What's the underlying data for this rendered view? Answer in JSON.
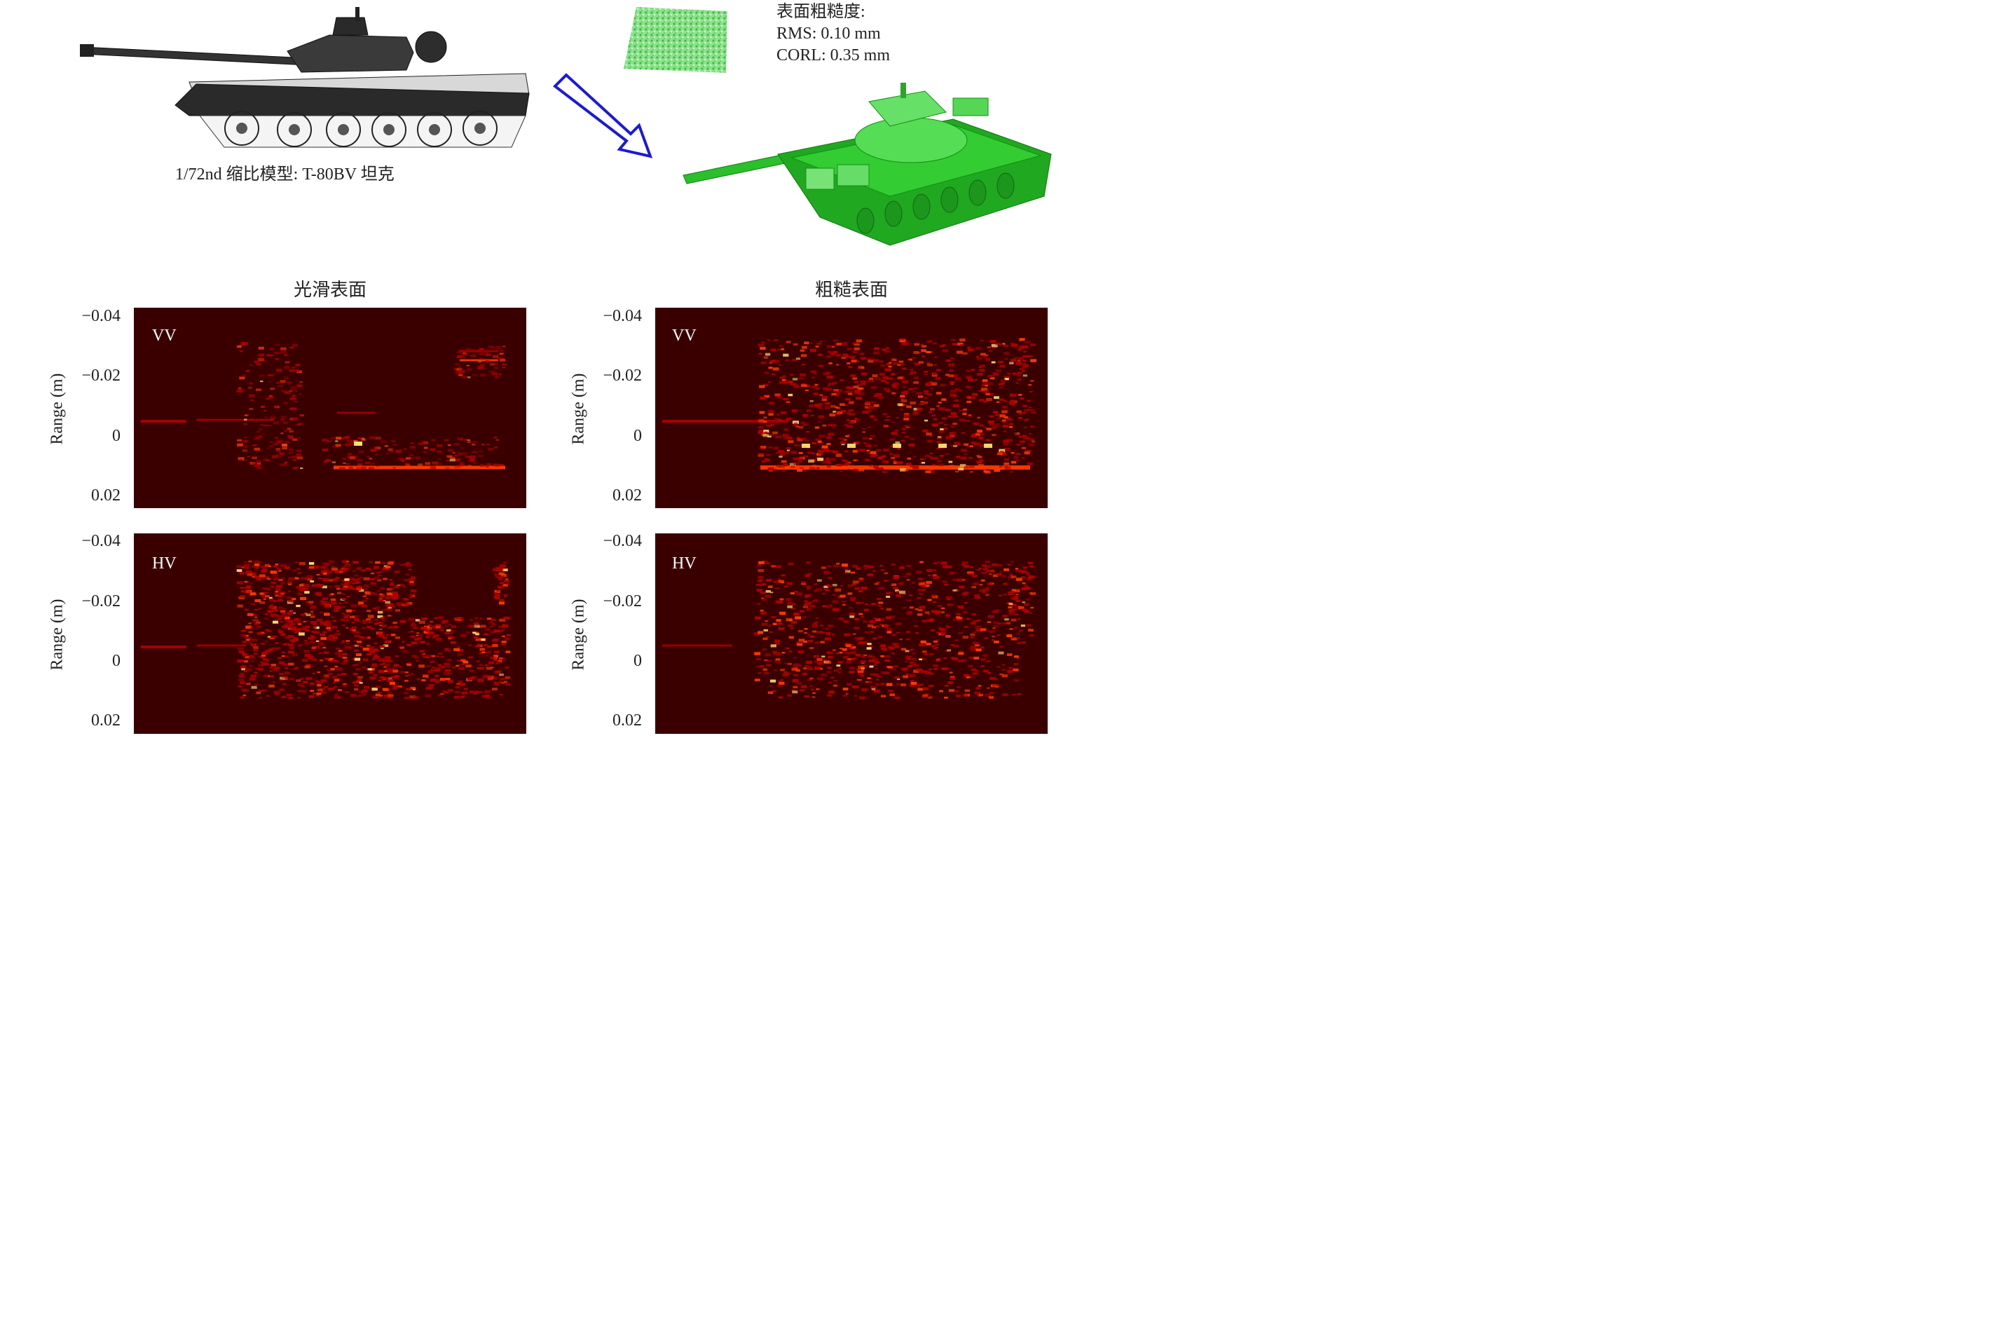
{
  "top": {
    "tank_caption": "1/72nd 缩比模型: T-80BV 坦克",
    "roughness_title": "表面粗糙度:",
    "roughness_rms": "RMS: 0.10 mm",
    "roughness_corl": "CORL: 0.35 mm"
  },
  "columns": [
    {
      "title": "光滑表面"
    },
    {
      "title": "粗糙表面"
    }
  ],
  "panels": {
    "smooth_vv": {
      "pol": "VV"
    },
    "smooth_hv": {
      "pol": "HV"
    },
    "rough_vv": {
      "pol": "VV"
    },
    "rough_hv": {
      "pol": "HV"
    }
  },
  "axis": {
    "ylabel": "Range (m)",
    "yticks": [
      "−0.04",
      "−0.02",
      "0",
      "0.02"
    ]
  },
  "colors": {
    "panel_bg": "#3a0000",
    "scatter_low": "#b00000",
    "scatter_mid": "#ff3a00",
    "scatter_high": "#ffe070",
    "tank_dark": "#2a2a2a",
    "tank_green": "#22b022",
    "arrow": "#1a1ad8"
  }
}
